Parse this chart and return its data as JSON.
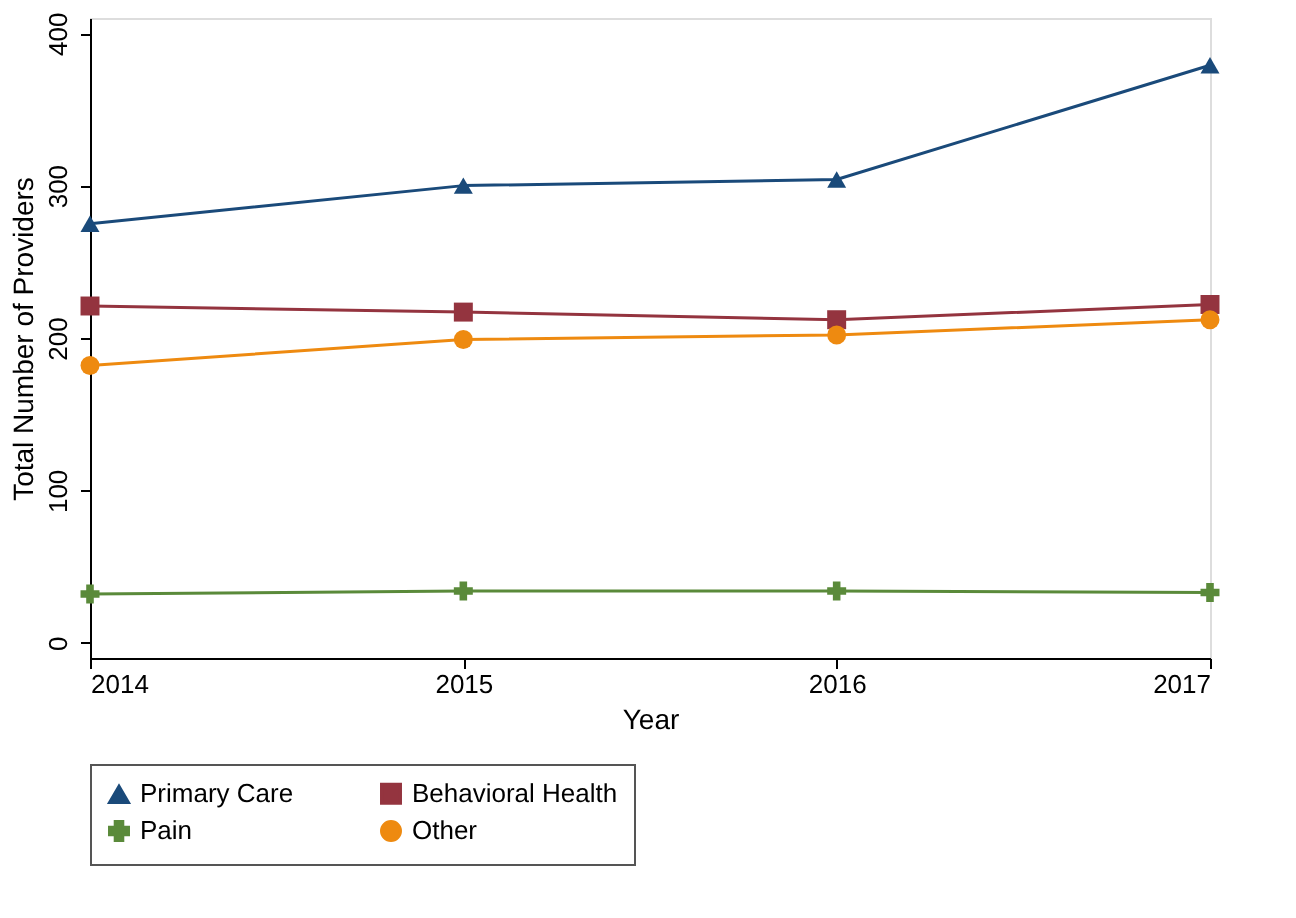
{
  "chart_data": {
    "type": "line",
    "xlabel": "Year",
    "ylabel": "Total Number of Providers",
    "x": [
      2014,
      2015,
      2016,
      2017
    ],
    "series": [
      {
        "name": "Primary Care",
        "color": "#1a4a7a",
        "marker": "triangle",
        "values": [
          275,
          300,
          304,
          379
        ]
      },
      {
        "name": "Behavioral Health",
        "color": "#94343f",
        "marker": "square",
        "values": [
          221,
          217,
          212,
          222
        ]
      },
      {
        "name": "Pain",
        "color": "#5a8a3a",
        "marker": "cross",
        "values": [
          32,
          34,
          34,
          33
        ]
      },
      {
        "name": "Other",
        "color": "#ee8a10",
        "marker": "circle",
        "values": [
          182,
          199,
          202,
          212
        ]
      }
    ],
    "xlim": [
      2014,
      2017
    ],
    "xticks": [
      2014,
      2015,
      2016,
      2017
    ],
    "ylim": [
      -10,
      410
    ],
    "yticks": [
      0,
      100,
      200,
      300,
      400
    ],
    "grid": false,
    "legend": "bottom",
    "line_style": "solid"
  }
}
